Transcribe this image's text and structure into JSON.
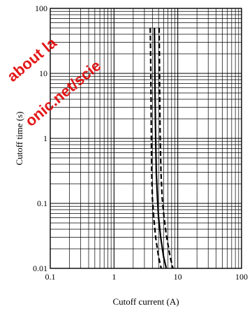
{
  "chart_data": {
    "type": "line",
    "xscale": "log",
    "yscale": "log",
    "xlim": [
      0.1,
      100
    ],
    "ylim": [
      0.01,
      100
    ],
    "xlabel": "Cutoff current  (A)",
    "ylabel": "Cutoff time  (s)",
    "x_tick_labels": [
      "0.1",
      "1",
      "10",
      "100"
    ],
    "y_tick_labels": [
      "100",
      "10",
      "1",
      "0.1",
      "0.01"
    ],
    "grid": true,
    "series": [
      {
        "style": "dashed",
        "points": [
          [
            3.7,
            50
          ],
          [
            3.75,
            20
          ],
          [
            3.8,
            5
          ],
          [
            3.85,
            1
          ],
          [
            3.9,
            0.3
          ],
          [
            4.0,
            0.12
          ],
          [
            4.2,
            0.06
          ],
          [
            4.5,
            0.03
          ],
          [
            5.0,
            0.015
          ],
          [
            5.5,
            0.01
          ]
        ]
      },
      {
        "style": "solid",
        "points": [
          [
            4.3,
            50
          ],
          [
            4.35,
            20
          ],
          [
            4.4,
            5
          ],
          [
            4.5,
            1
          ],
          [
            4.6,
            0.3
          ],
          [
            4.8,
            0.12
          ],
          [
            5.0,
            0.06
          ],
          [
            5.4,
            0.03
          ],
          [
            6.0,
            0.015
          ],
          [
            6.6,
            0.01
          ]
        ]
      },
      {
        "style": "dashed",
        "points": [
          [
            5.1,
            50
          ],
          [
            5.15,
            20
          ],
          [
            5.2,
            5
          ],
          [
            5.3,
            1
          ],
          [
            5.45,
            0.3
          ],
          [
            5.7,
            0.12
          ],
          [
            6.1,
            0.06
          ],
          [
            6.7,
            0.03
          ],
          [
            7.6,
            0.015
          ],
          [
            8.4,
            0.01
          ]
        ]
      }
    ]
  },
  "watermark": "about la...onic.net/scie..."
}
